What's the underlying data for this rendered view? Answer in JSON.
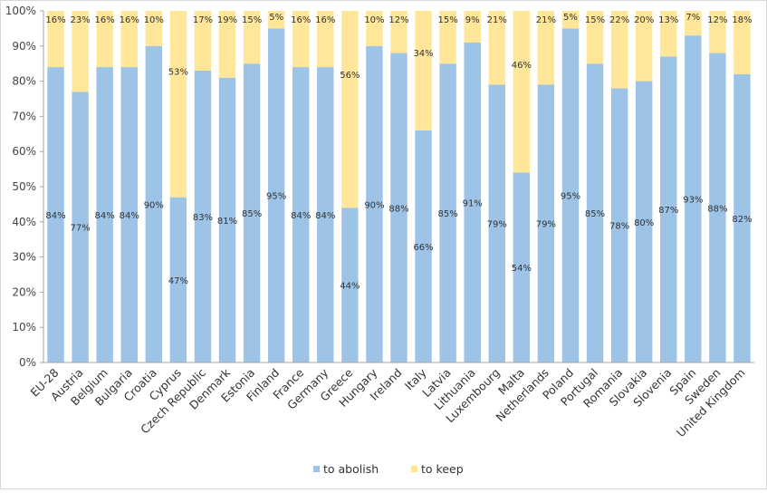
{
  "chart_data": {
    "type": "bar",
    "stacked": true,
    "categories": [
      "EU-28",
      "Austria",
      "Belgium",
      "Bulgaria",
      "Croatia",
      "Cyprus",
      "Czech Republic",
      "Denmark",
      "Estonia",
      "Finland",
      "France",
      "Germany",
      "Greece",
      "Hungary",
      "Ireland",
      "Italy",
      "Latvia",
      "Lithuania",
      "Luxembourg",
      "Malta",
      "Netherlands",
      "Poland",
      "Portugal",
      "Romania",
      "Slovakia",
      "Slovenia",
      "Spain",
      "Sweden",
      "United Kingdom"
    ],
    "series": [
      {
        "name": "to abolish",
        "color": "#9DC3E6",
        "values": [
          84,
          77,
          84,
          84,
          90,
          47,
          83,
          81,
          85,
          95,
          84,
          84,
          44,
          90,
          88,
          66,
          85,
          91,
          79,
          54,
          79,
          95,
          85,
          78,
          80,
          87,
          93,
          88,
          82
        ]
      },
      {
        "name": "to keep",
        "color": "#FFE699",
        "values": [
          16,
          23,
          16,
          16,
          10,
          53,
          17,
          19,
          15,
          5,
          16,
          16,
          56,
          10,
          12,
          34,
          15,
          9,
          21,
          46,
          21,
          5,
          15,
          22,
          20,
          13,
          7,
          12,
          18
        ]
      }
    ],
    "ylim": [
      0,
      100
    ],
    "yticks": [
      "0%",
      "10%",
      "20%",
      "30%",
      "40%",
      "50%",
      "60%",
      "70%",
      "80%",
      "90%",
      "100%"
    ],
    "value_suffix": "%",
    "legend_position": "bottom",
    "grid": false
  }
}
